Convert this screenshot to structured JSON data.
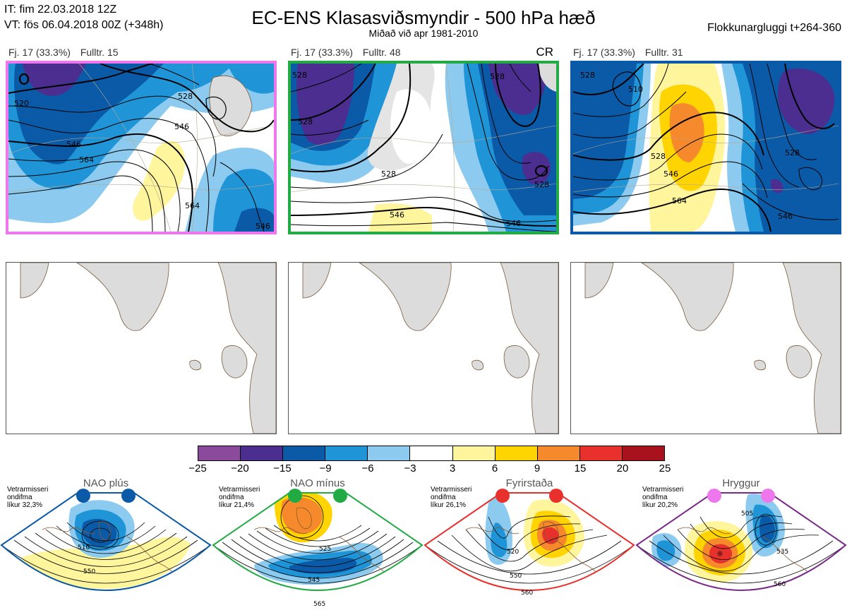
{
  "header": {
    "it_line": "IT: fim 22.03.2018 12Z",
    "vt_line": "VT: fös 06.04.2018 00Z  (+348h)",
    "title": "EC-ENS Klasasviðsmyndir - 500 hPa hæð",
    "subtitle": "Miðað við apr 1981-2010",
    "window": "Flokkunargluggi t+264-360"
  },
  "panels": [
    {
      "count": "Fj. 17 (33.3%)",
      "rep": "Fulltr. 15",
      "border": "#ee77ee",
      "tag": "",
      "contour_labels": [
        "520",
        "528",
        "546",
        "546",
        "564",
        "564",
        "546"
      ]
    },
    {
      "count": "Fj. 17 (33.3%)",
      "rep": "Fulltr. 48",
      "border": "#22aa44",
      "tag": "CR",
      "contour_labels": [
        "528",
        "528",
        "528",
        "546",
        "528",
        "528",
        "546"
      ]
    },
    {
      "count": "Fj. 17 (33.3%)",
      "rep": "Fulltr. 31",
      "border": "#0b5aa8",
      "tag": "",
      "contour_labels": [
        "528",
        "510",
        "528",
        "546",
        "564",
        "528",
        "546"
      ]
    }
  ],
  "colorbar": {
    "ticks": [
      "−25",
      "−20",
      "−15",
      "−9",
      "−6",
      "−3",
      "3",
      "6",
      "9",
      "15",
      "20",
      "25"
    ],
    "colors": [
      "#8b4a9c",
      "#4b2e8f",
      "#0b5aa8",
      "#1f95d8",
      "#8ccbef",
      "#ffffff",
      "#fff59d",
      "#ffd400",
      "#f6892b",
      "#e8302c",
      "#a7121d"
    ]
  },
  "regimes": [
    {
      "name": "NAO plús",
      "info": [
        "Vetrarmisseri",
        "ondifma",
        "líkur 32,3%"
      ],
      "dot_color": "#0b5aa8",
      "border": "#0b5aa8",
      "contour_labels": [
        "510",
        "550"
      ]
    },
    {
      "name": "NAO mínus",
      "info": [
        "Vetrarmisseri",
        "ondifma",
        "líkur 21,4%"
      ],
      "dot_color": "#22aa44",
      "border": "#22aa44",
      "contour_labels": [
        "525",
        "545",
        "565"
      ]
    },
    {
      "name": "Fyrirstaða",
      "info": [
        "Vetrarmisseri",
        "ondifma",
        "líkur 26,1%"
      ],
      "dot_color": "#e8302c",
      "border": "#e8302c",
      "contour_labels": [
        "520",
        "550",
        "560"
      ]
    },
    {
      "name": "Hryggur",
      "info": [
        "Vetrarmisseri",
        "ondifma",
        "líkur 20,2%"
      ],
      "dot_color": "#ee77ee",
      "border": "#7a2a8a",
      "contour_labels": [
        "505",
        "535",
        "560"
      ]
    }
  ]
}
